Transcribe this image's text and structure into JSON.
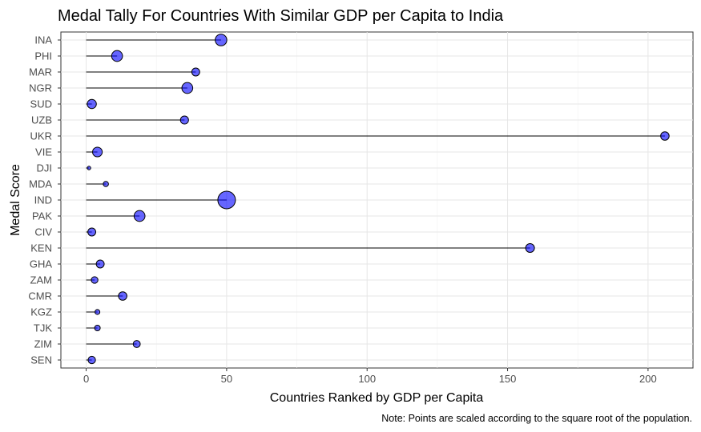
{
  "chart_data": {
    "type": "lollipop",
    "title": "Medal Tally For Countries With Similar GDP per Capita to India",
    "xlabel": "Countries Ranked by GDP per Capita",
    "ylabel": "Medal Score",
    "caption": "Note: Points are scaled according to the square root of the population.",
    "xlim": [
      -9,
      216
    ],
    "xticks": [
      0,
      50,
      100,
      150,
      200
    ],
    "grid": true,
    "point_color": "#0000ff",
    "point_opacity": 0.6,
    "categories": [
      "INA",
      "PHI",
      "MAR",
      "NGR",
      "SUD",
      "UZB",
      "UKR",
      "VIE",
      "DJI",
      "MDA",
      "IND",
      "PAK",
      "CIV",
      "KEN",
      "GHA",
      "ZAM",
      "CMR",
      "KGZ",
      "TJK",
      "ZIM",
      "SEN"
    ],
    "values": [
      48,
      11,
      39,
      36,
      2,
      35,
      206,
      4,
      1,
      7,
      50,
      19,
      2,
      158,
      5,
      3,
      13,
      4,
      4,
      18,
      2
    ],
    "point_size_relative": [
      0.66,
      0.62,
      0.45,
      0.62,
      0.52,
      0.46,
      0.48,
      0.55,
      0.2,
      0.3,
      1.0,
      0.62,
      0.45,
      0.5,
      0.45,
      0.38,
      0.48,
      0.28,
      0.32,
      0.4,
      0.42
    ]
  }
}
